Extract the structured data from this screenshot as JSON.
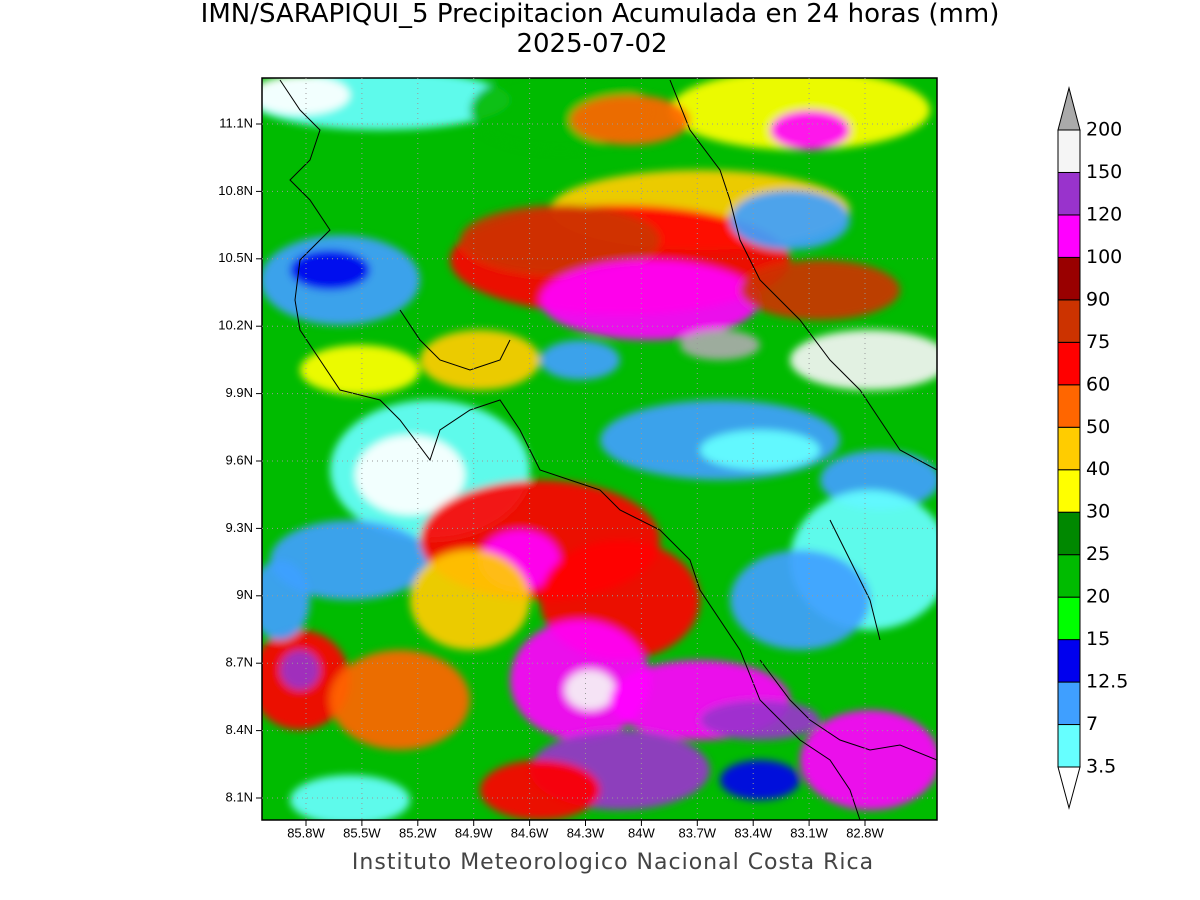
{
  "title": "IMN/SARAPIQUI_5 Precipitacion Acumulada en 24 horas (mm)",
  "subtitle": "2025-07-02",
  "lat_ticks": [
    "11.1N",
    "10.8N",
    "10.5N",
    "10.2N",
    "9.9N",
    "9.6N",
    "9.3N",
    "9N",
    "8.7N",
    "8.4N",
    "8.1N"
  ],
  "lon_ticks": [
    "85.8W",
    "85.5W",
    "85.2W",
    "84.9W",
    "84.6W",
    "84.3W",
    "84W",
    "83.7W",
    "83.4W",
    "83.1W",
    "82.8W"
  ],
  "colorbar": {
    "levels": [
      3.5,
      7,
      12.5,
      15,
      20,
      25,
      30,
      40,
      50,
      60,
      75,
      90,
      100,
      120,
      150,
      200
    ],
    "colors": [
      "#ffffff",
      "#66ffff",
      "#3f9fff",
      "#0000ee",
      "#00ff00",
      "#00bb00",
      "#008800",
      "#ffff00",
      "#ffcc00",
      "#ff6600",
      "#ff0000",
      "#cc3300",
      "#990000",
      "#ff00ff",
      "#9933cc",
      "#f5f5f5",
      "#aaaaaa"
    ]
  },
  "footer": "Instituto Meteorologico Nacional Costa Rica"
}
